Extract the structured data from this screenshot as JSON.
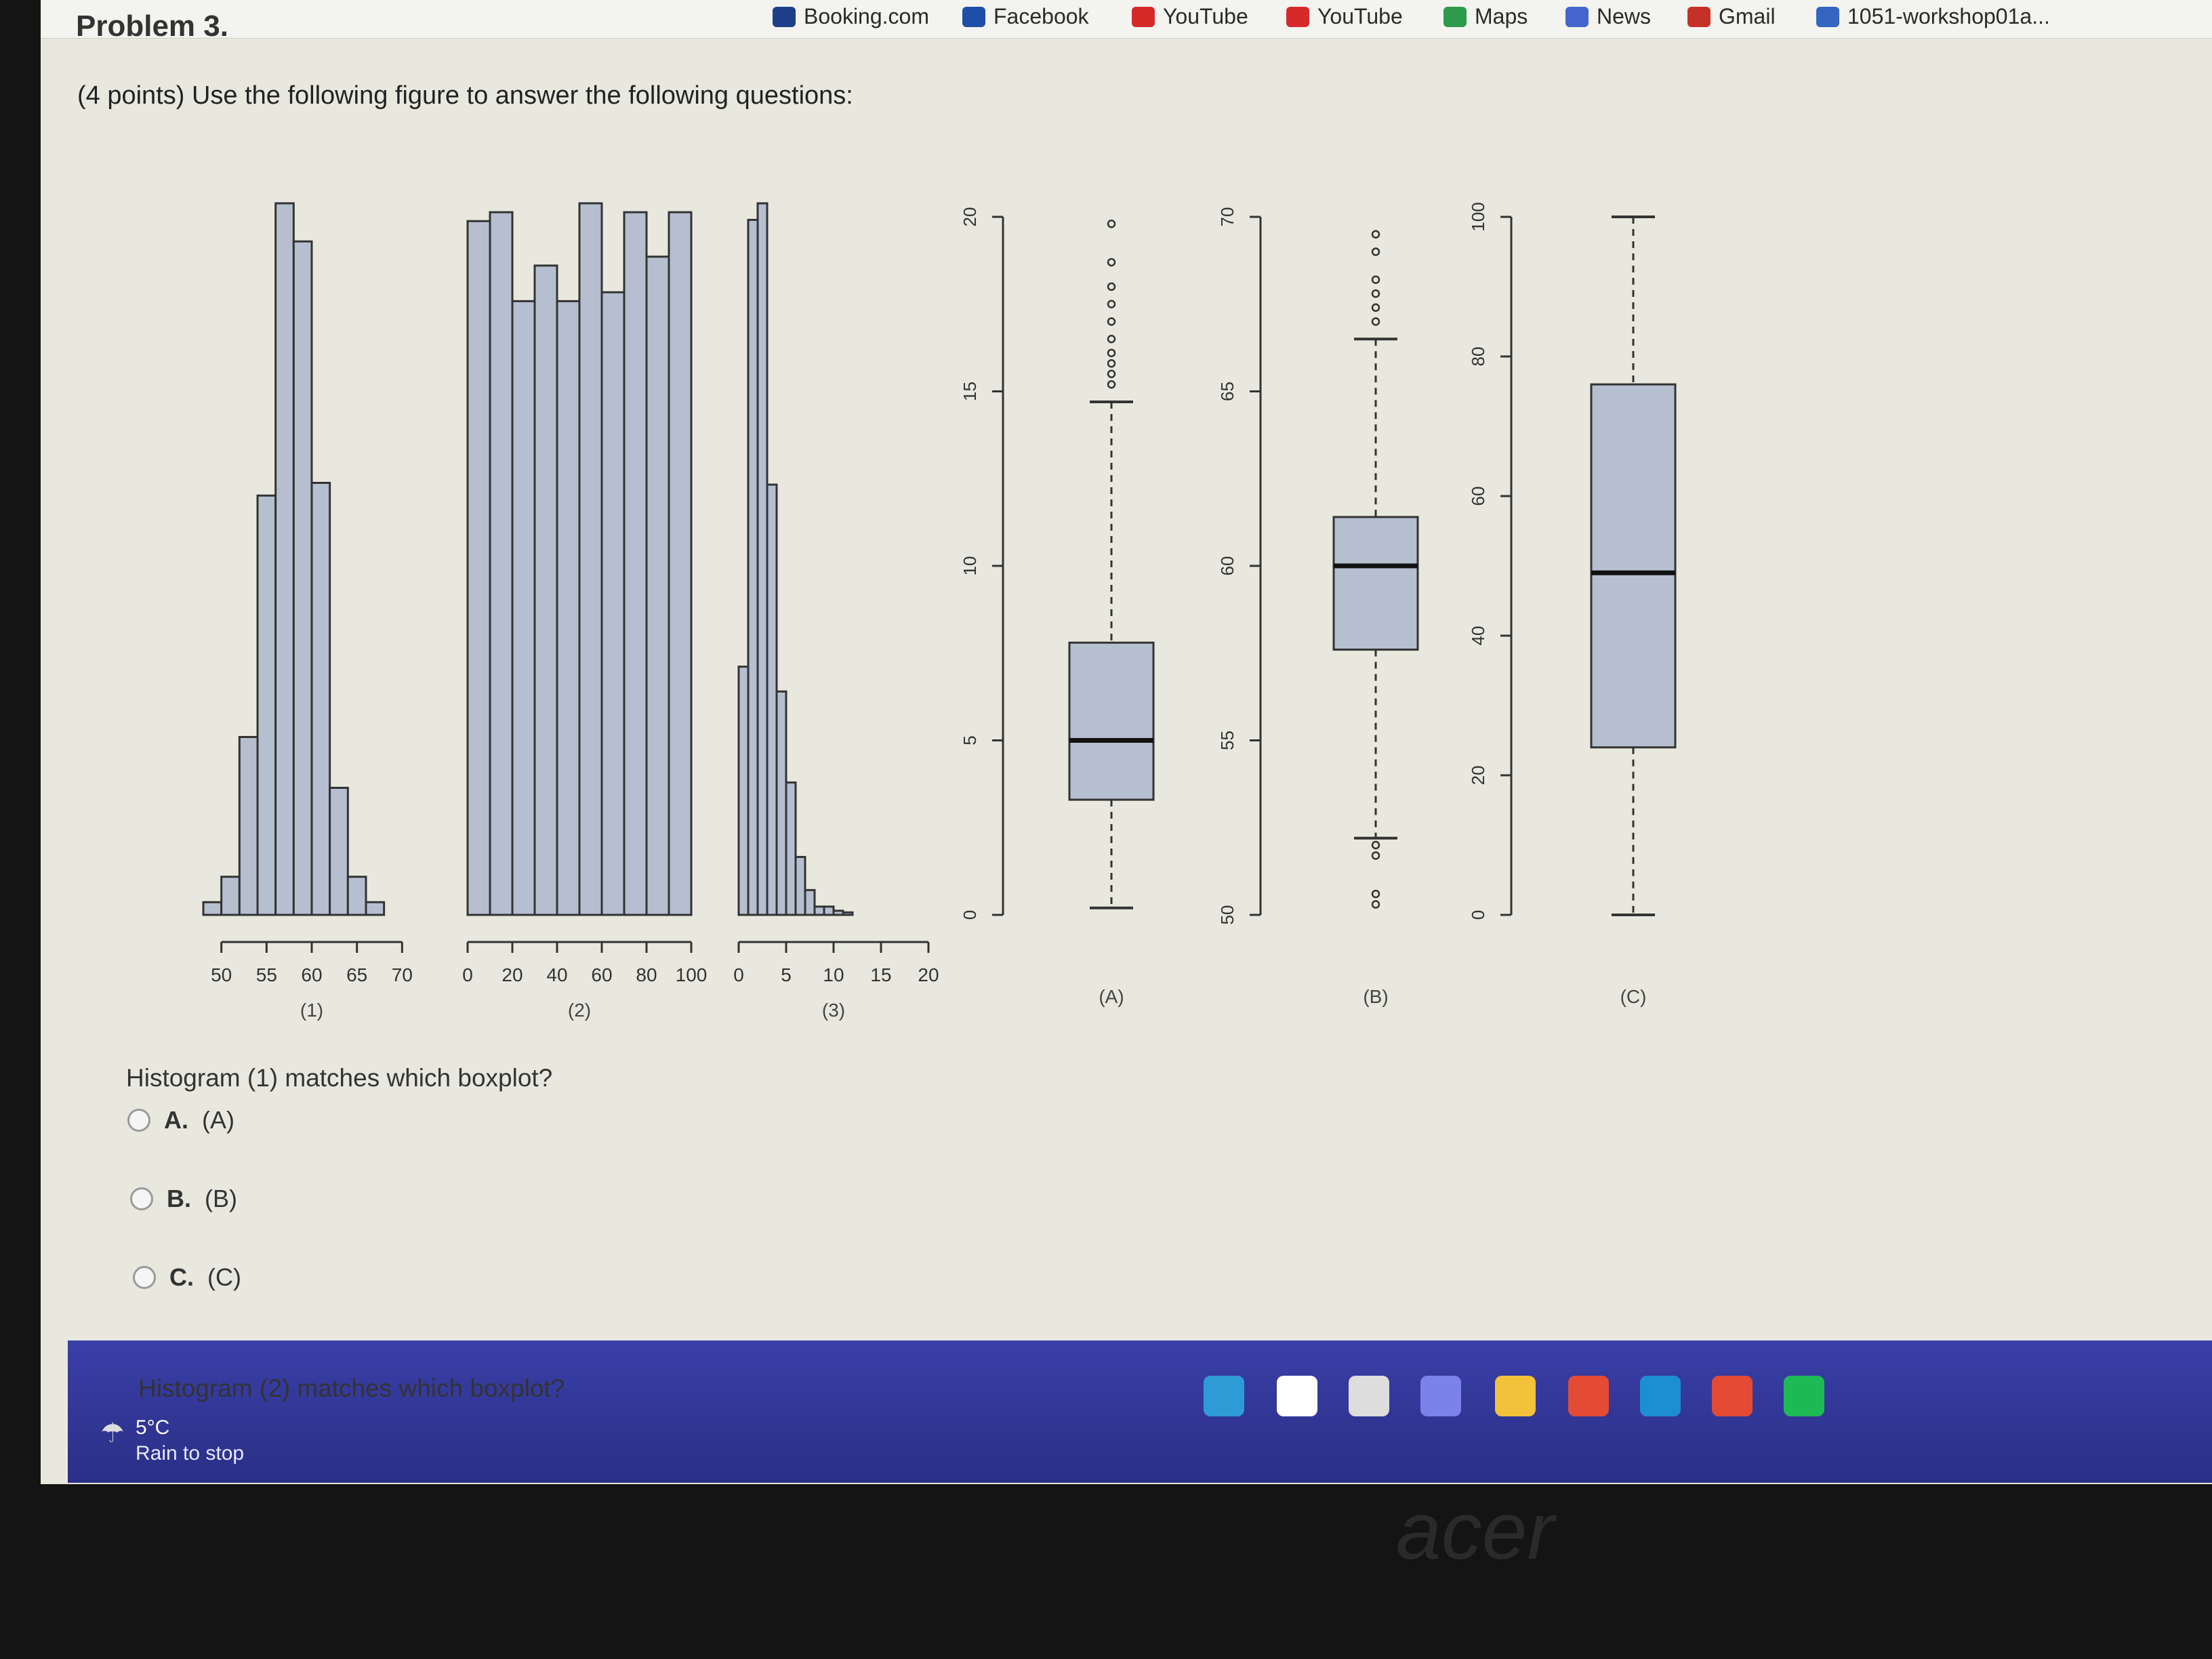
{
  "bookmarks": [
    {
      "label": "Booking.com",
      "icon": "booking-icon",
      "color": "#1f3f8a"
    },
    {
      "label": "Facebook",
      "icon": "facebook-icon",
      "color": "#1f4ea8"
    },
    {
      "label": "YouTube",
      "icon": "youtube-icon",
      "color": "#d62a2a"
    },
    {
      "label": "YouTube",
      "icon": "youtube-icon",
      "color": "#d62a2a"
    },
    {
      "label": "Maps",
      "icon": "maps-icon",
      "color": "#2e9a4b"
    },
    {
      "label": "News",
      "icon": "news-icon",
      "color": "#4466cc"
    },
    {
      "label": "Gmail",
      "icon": "gmail-icon",
      "color": "#c53127"
    },
    {
      "label": "1051-workshop01a...",
      "icon": "workshop-icon",
      "color": "#3465c0"
    }
  ],
  "problem": {
    "title": "Problem 3.",
    "instructions": "(4 points) Use the following figure to answer the following questions:"
  },
  "chart_data": [
    {
      "type": "bar",
      "label": "(1)",
      "x_ticks": [
        50,
        55,
        60,
        65,
        70
      ],
      "bin_edges": [
        48,
        50,
        52,
        54,
        56,
        58,
        60,
        62,
        64,
        66,
        68,
        70,
        72
      ],
      "values": [
        1,
        3,
        14,
        33,
        56,
        53,
        34,
        10,
        3,
        1,
        0,
        0
      ]
    },
    {
      "type": "bar",
      "label": "(2)",
      "x_ticks": [
        0,
        20,
        40,
        60,
        80,
        100
      ],
      "bin_edges": [
        0,
        10,
        20,
        30,
        40,
        50,
        60,
        70,
        80,
        90,
        100
      ],
      "values": [
        78,
        79,
        69,
        73,
        69,
        80,
        70,
        79,
        74,
        79
      ]
    },
    {
      "type": "bar",
      "label": "(3)",
      "x_ticks": [
        0,
        5,
        10,
        15,
        20
      ],
      "bin_edges": [
        0,
        1,
        2,
        3,
        4,
        5,
        6,
        7,
        8,
        9,
        10,
        11,
        12,
        13,
        14,
        15,
        16,
        17,
        18,
        19,
        20
      ],
      "values": [
        30,
        84,
        86,
        52,
        27,
        16,
        7,
        3,
        1,
        1,
        0.5,
        0.3,
        0,
        0,
        0,
        0,
        0,
        0,
        0,
        0
      ]
    },
    {
      "type": "boxplot",
      "label": "(A)",
      "y_ticks": [
        0,
        5,
        10,
        15,
        20
      ],
      "ylim": [
        0,
        20
      ],
      "min": 0.2,
      "q1": 3.3,
      "median": 5.0,
      "q3": 7.8,
      "max": 14.7,
      "outliers": [
        15.2,
        15.5,
        15.8,
        16.1,
        16.5,
        17.0,
        17.5,
        18.0,
        18.7,
        19.8
      ]
    },
    {
      "type": "boxplot",
      "label": "(B)",
      "y_ticks": [
        50,
        55,
        60,
        65,
        70
      ],
      "ylim": [
        50,
        70
      ],
      "min": 52.2,
      "q1": 57.6,
      "median": 60.0,
      "q3": 61.4,
      "max": 66.5,
      "outliers": [
        50.3,
        50.6,
        51.7,
        52.0,
        67.0,
        67.4,
        67.8,
        68.2,
        69.0,
        69.5
      ]
    },
    {
      "type": "boxplot",
      "label": "(C)",
      "y_ticks": [
        0,
        20,
        40,
        60,
        80,
        100
      ],
      "ylim": [
        0,
        100
      ],
      "min": 0.0,
      "q1": 24.0,
      "median": 49.0,
      "q3": 76.0,
      "max": 100.0,
      "outliers": []
    }
  ],
  "questions": [
    {
      "text": "Histogram (1) matches which boxplot?",
      "options": [
        {
          "letter": "A.",
          "text": "(A)"
        },
        {
          "letter": "B.",
          "text": "(B)"
        },
        {
          "letter": "C.",
          "text": "(C)"
        }
      ]
    },
    {
      "text": "Histogram (2) matches which boxplot?"
    }
  ],
  "taskbar": {
    "temperature": "5°C",
    "weather": "Rain to stop",
    "colors": {
      "windows": "#2f9bd6",
      "search": "#ffffff",
      "files": "#f2c23a",
      "chrome": "#e44b35",
      "edge": "#1b8fd1",
      "spotify": "#1db954"
    }
  },
  "brand": "acer"
}
